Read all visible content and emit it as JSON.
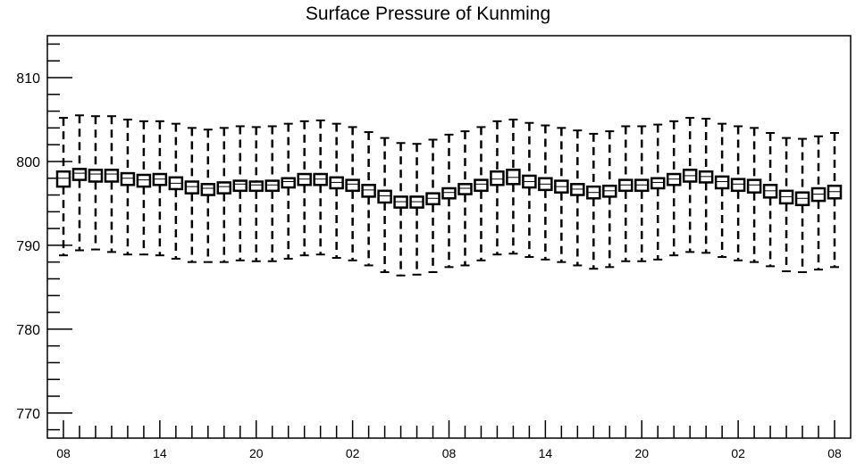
{
  "chart_data": {
    "type": "boxplot",
    "title": "Surface Pressure of Kunming",
    "xlabel": "",
    "ylabel": "",
    "ylim": [
      767,
      815
    ],
    "y_ticks": [
      770,
      780,
      790,
      800,
      810
    ],
    "x_tick_labels": [
      "08",
      "14",
      "20",
      "02",
      "08",
      "14",
      "20",
      "02",
      "08"
    ],
    "x_tick_every": 6,
    "grid": false,
    "series": [
      {
        "x": [
          "08",
          "09",
          "10",
          "11",
          "12",
          "13",
          "14",
          "15",
          "16",
          "17",
          "18",
          "19",
          "20",
          "21",
          "22",
          "23",
          "00",
          "01",
          "02",
          "03",
          "04",
          "05",
          "06",
          "07",
          "08",
          "09",
          "10",
          "11",
          "12",
          "13",
          "14",
          "15",
          "16",
          "17",
          "18",
          "19",
          "20",
          "21",
          "22",
          "23",
          "00",
          "01",
          "02",
          "03",
          "04",
          "05",
          "06",
          "07",
          "08"
        ],
        "whisker_high": [
          805.2,
          805.5,
          805.4,
          805.4,
          805.0,
          804.8,
          804.8,
          804.5,
          804.0,
          803.8,
          804.0,
          804.2,
          804.1,
          804.2,
          804.5,
          804.8,
          804.9,
          804.5,
          804.1,
          803.5,
          802.8,
          802.2,
          802.1,
          802.6,
          803.2,
          803.6,
          804.1,
          804.8,
          805.0,
          804.6,
          804.3,
          804.0,
          803.7,
          803.3,
          803.6,
          804.2,
          804.2,
          804.4,
          804.8,
          805.2,
          805.1,
          804.5,
          804.2,
          804.0,
          803.4,
          802.8,
          802.7,
          803.0,
          803.4
        ],
        "q3": [
          798.8,
          799.1,
          799.0,
          799.0,
          798.6,
          798.4,
          798.5,
          798.1,
          797.6,
          797.3,
          797.5,
          797.7,
          797.6,
          797.7,
          798.0,
          798.5,
          798.5,
          798.1,
          797.8,
          797.2,
          796.5,
          795.8,
          795.8,
          796.2,
          796.8,
          797.3,
          797.8,
          798.8,
          799.0,
          798.3,
          798.0,
          797.7,
          797.3,
          797.0,
          797.1,
          797.8,
          797.8,
          798.0,
          798.5,
          799.0,
          798.8,
          798.2,
          797.9,
          797.8,
          797.2,
          796.5,
          796.3,
          796.8,
          797.1
        ],
        "median": [
          798.0,
          798.6,
          798.5,
          798.5,
          798.0,
          797.8,
          797.9,
          797.4,
          797.0,
          796.8,
          797.0,
          797.3,
          797.2,
          797.2,
          797.6,
          797.9,
          797.9,
          797.5,
          797.3,
          796.6,
          795.9,
          795.2,
          795.2,
          795.6,
          796.3,
          796.8,
          797.3,
          797.9,
          798.1,
          797.6,
          797.3,
          797.0,
          796.7,
          796.3,
          796.5,
          797.2,
          797.2,
          797.5,
          797.9,
          798.3,
          798.2,
          797.6,
          797.3,
          797.2,
          796.5,
          795.8,
          795.6,
          796.1,
          796.4
        ],
        "q1": [
          797.0,
          797.8,
          797.6,
          797.6,
          797.2,
          797.0,
          797.2,
          796.7,
          796.2,
          796.0,
          796.2,
          796.5,
          796.5,
          796.5,
          796.9,
          797.2,
          797.2,
          796.8,
          796.5,
          795.8,
          795.1,
          794.5,
          794.5,
          794.9,
          795.6,
          796.1,
          796.5,
          797.2,
          797.3,
          796.9,
          796.6,
          796.3,
          796.0,
          795.6,
          795.8,
          796.5,
          796.5,
          796.8,
          797.2,
          797.6,
          797.5,
          796.8,
          796.5,
          796.3,
          795.7,
          795.0,
          794.8,
          795.3,
          795.6
        ],
        "whisker_low": [
          788.8,
          789.4,
          789.5,
          789.2,
          788.9,
          788.9,
          788.8,
          788.4,
          788.0,
          788.0,
          788.0,
          788.2,
          788.1,
          788.1,
          788.4,
          788.8,
          788.9,
          788.5,
          788.2,
          787.6,
          786.8,
          786.4,
          786.5,
          786.8,
          787.4,
          787.6,
          788.2,
          788.9,
          789.0,
          788.6,
          788.3,
          788.0,
          787.6,
          787.2,
          787.4,
          788.1,
          788.1,
          788.3,
          788.8,
          789.2,
          789.1,
          788.6,
          788.2,
          788.0,
          787.5,
          786.9,
          786.8,
          787.1,
          787.4
        ]
      }
    ]
  }
}
